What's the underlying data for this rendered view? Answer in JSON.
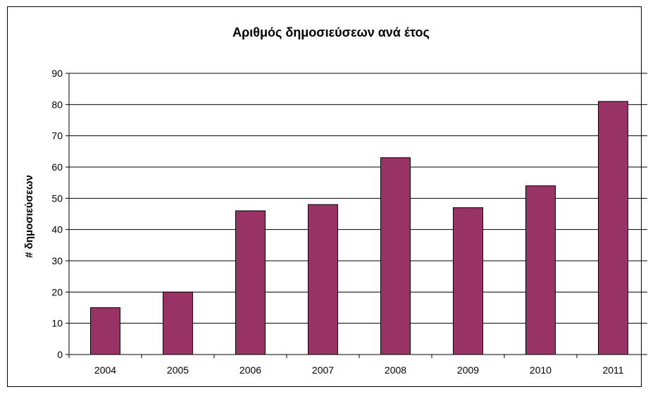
{
  "chart_data": {
    "type": "bar",
    "title": "Αριθμός δημοσιεύσεων ανά έτος",
    "xlabel": "",
    "ylabel": "# δημοσιεύσεων",
    "categories": [
      "2004",
      "2005",
      "2006",
      "2007",
      "2008",
      "2009",
      "2010",
      "2011"
    ],
    "values": [
      15,
      20,
      46,
      48,
      63,
      47,
      54,
      81
    ],
    "ylim": [
      0,
      90
    ],
    "yticks": [
      0,
      10,
      20,
      30,
      40,
      50,
      60,
      70,
      80,
      90
    ],
    "grid": true,
    "legend": "none",
    "colors": {
      "bar": "#993366",
      "bar_outline": "#000000",
      "grid": "#000000"
    }
  }
}
